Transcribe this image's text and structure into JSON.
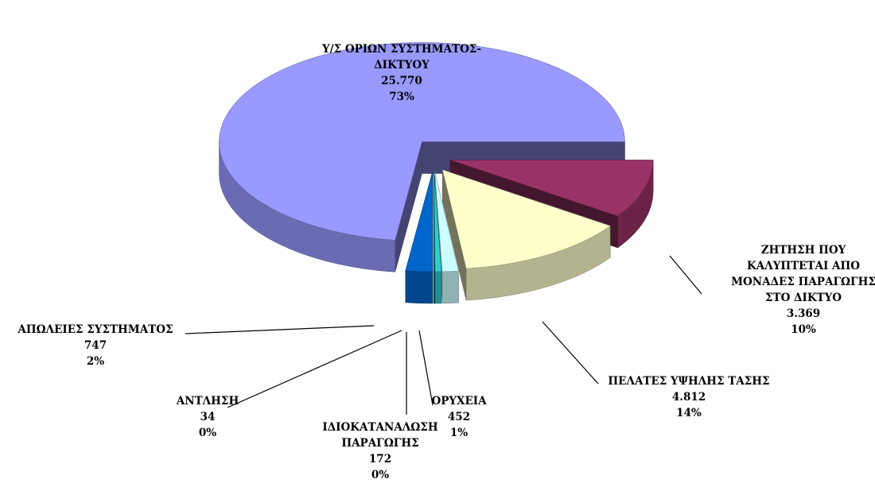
{
  "chart_data": {
    "type": "pie",
    "categories": [
      "Υ/Σ ΟΡΙΩΝ ΣΥΣΤΗΜΑΤΟΣ-ΔΙΚΤΥΟΥ",
      "ΖΗΤΗΣΗ ΠΟΥ ΚΑΛΥΠΤΕΤΑΙ ΑΠΟ ΜΟΝΑΔΕΣ ΠΑΡΑΓΩΓΗΣ ΣΤΟ ΔΙΚΤΥΟ",
      "ΠΕΛΑΤΕΣ ΥΨΗΛΗΣ ΤΑΣΗΣ",
      "ΟΡΥΧΕΙΑ",
      "ΙΔΙΟΚΑΤΑΝΑΛΩΣΗ ΠΑΡΑΓΩΓΗΣ",
      "ΑΝΤΛΗΣΗ",
      "ΑΠΩΛΕΙΕΣ ΣΥΣΤΗΜΑΤΟΣ"
    ],
    "values": [
      25770,
      3369,
      4812,
      452,
      172,
      34,
      747
    ],
    "value_labels": [
      "25.770",
      "3.369",
      "4.812",
      "452",
      "172",
      "34",
      "747"
    ],
    "percent_labels": [
      "73%",
      "10%",
      "14%",
      "1%",
      "0%",
      "0%",
      "2%"
    ],
    "colors": [
      "#9999ff",
      "#993366",
      "#ffffcc",
      "#ccffff",
      "#33cccc",
      "#008080",
      "#0066cc"
    ]
  }
}
